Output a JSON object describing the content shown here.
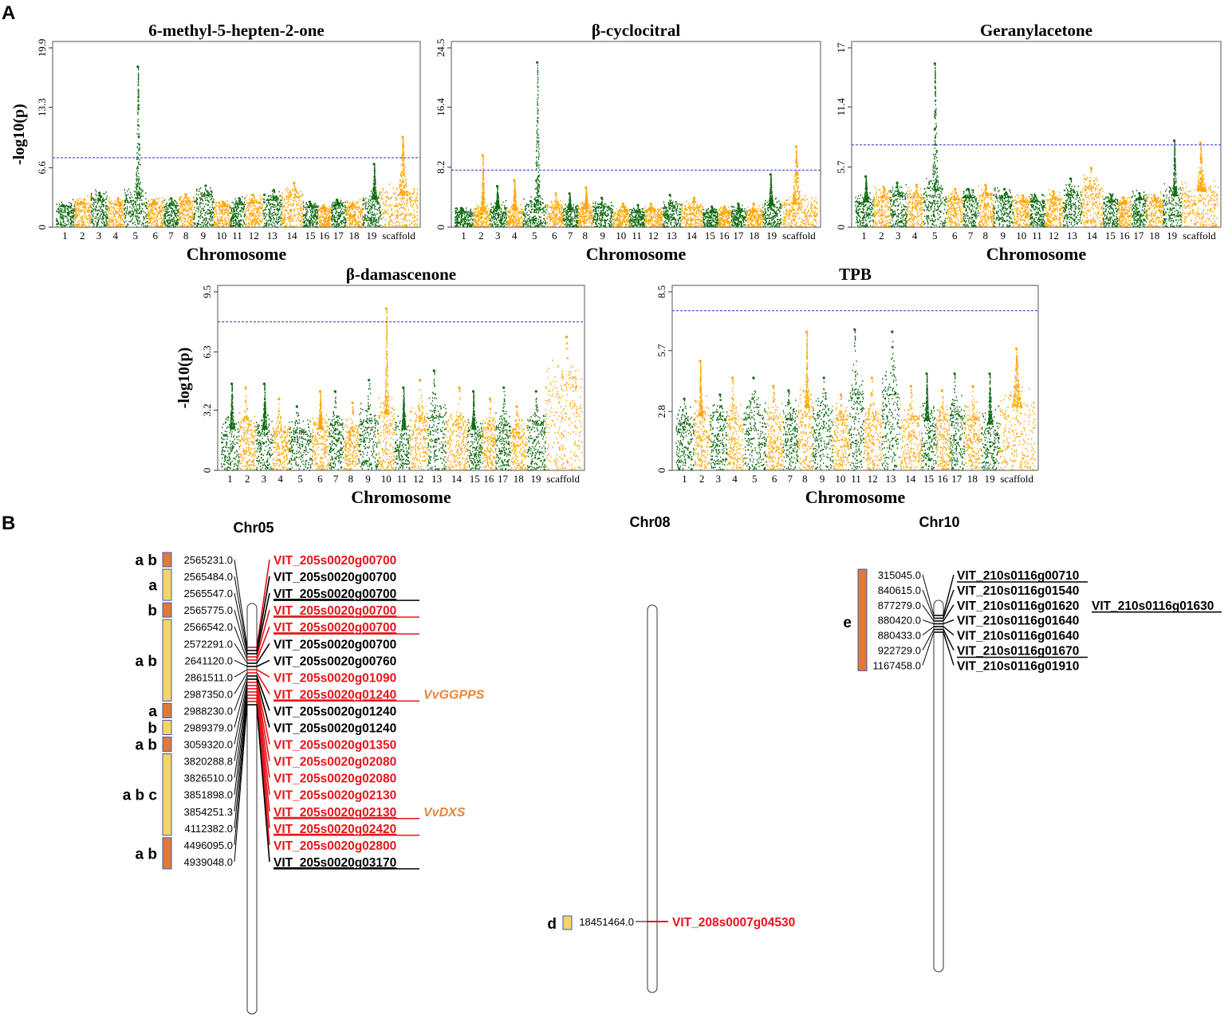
{
  "panel_labels": {
    "a": "A",
    "b": "B"
  },
  "colors": {
    "green": "#0f6a10",
    "orange": "#ffa500",
    "threshold": "#2d2dd6",
    "red": "#e8141a",
    "gene_orange": "#e8863a",
    "box_dark": "#e07a3a",
    "box_light": "#f7d36b",
    "box_border": "#3a5bb0"
  },
  "chart_data": [
    {
      "type": "scatter",
      "subtype": "manhattan",
      "title": "6-methyl-5-hepten-2-one",
      "xlabel": "Chromosome",
      "ylabel": "-log10(p)",
      "ylim": [
        0,
        19.9
      ],
      "yticks": [
        "0",
        "6.6",
        "13.3",
        "19.9"
      ],
      "threshold": 7.7,
      "x_labels": [
        "1",
        "2",
        "3",
        "4",
        "5",
        "6",
        "7",
        "8",
        "9",
        "10",
        "11",
        "12",
        "13",
        "14",
        "15",
        "16",
        "17",
        "18",
        "19",
        "scaffold"
      ],
      "base": [
        2.3,
        2.6,
        3.0,
        2.4,
        3.2,
        2.5,
        2.4,
        2.8,
        3.4,
        2.3,
        2.5,
        2.7,
        3.0,
        3.3,
        2.2,
        2.0,
        2.4,
        2.2,
        3.1,
        3.5
      ],
      "peaks": [
        2.4,
        2.8,
        3.8,
        3.2,
        17.8,
        3.0,
        3.2,
        3.6,
        4.6,
        2.8,
        3.2,
        3.6,
        4.1,
        4.9,
        2.8,
        2.4,
        3.0,
        2.6,
        7.0,
        10.0
      ]
    },
    {
      "type": "scatter",
      "subtype": "manhattan",
      "title": "β-cyclocitral",
      "xlabel": "Chromosome",
      "ylabel": "-log10(p)",
      "ylim": [
        0,
        24.5
      ],
      "yticks": [
        "0",
        "8.2",
        "16.4",
        "24.5"
      ],
      "threshold": 7.8,
      "x_labels": [
        "1",
        "2",
        "3",
        "4",
        "5",
        "6",
        "7",
        "8",
        "9",
        "10",
        "11",
        "12",
        "13",
        "14",
        "15",
        "16",
        "17",
        "18",
        "19",
        "scaffold"
      ],
      "base": [
        2.0,
        2.2,
        2.6,
        2.4,
        3.0,
        2.6,
        2.4,
        2.6,
        2.6,
        2.2,
        2.0,
        2.2,
        2.6,
        2.6,
        2.0,
        2.0,
        2.2,
        2.2,
        3.0,
        3.2
      ],
      "peaks": [
        2.6,
        9.8,
        5.6,
        6.4,
        22.5,
        4.6,
        4.6,
        5.4,
        4.0,
        3.2,
        3.0,
        3.2,
        4.4,
        4.0,
        2.8,
        2.8,
        3.2,
        3.2,
        7.2,
        11.0
      ]
    },
    {
      "type": "scatter",
      "subtype": "manhattan",
      "title": "Geranylacetone",
      "xlabel": "Chromosome",
      "ylabel": "-log10(p)",
      "ylim": [
        0,
        17
      ],
      "yticks": [
        "0",
        "5.7",
        "11.4",
        "17"
      ],
      "threshold": 7.8,
      "x_labels": [
        "1",
        "2",
        "3",
        "4",
        "5",
        "6",
        "7",
        "8",
        "9",
        "10",
        "11",
        "12",
        "13",
        "14",
        "15",
        "16",
        "17",
        "18",
        "19",
        "scaffold"
      ],
      "base": [
        2.4,
        2.8,
        3.0,
        2.8,
        3.5,
        2.6,
        2.8,
        3.0,
        2.8,
        2.4,
        2.4,
        2.6,
        3.0,
        3.6,
        2.4,
        2.2,
        2.6,
        2.4,
        3.0,
        3.4
      ],
      "peaks": [
        4.8,
        3.8,
        4.2,
        4.0,
        15.5,
        3.6,
        3.6,
        4.0,
        3.6,
        3.0,
        3.0,
        3.4,
        4.6,
        5.6,
        3.0,
        2.8,
        3.2,
        3.0,
        8.2,
        8.0
      ]
    },
    {
      "type": "scatter",
      "subtype": "manhattan",
      "title": "β-damascenone",
      "xlabel": "Chromosome",
      "ylabel": "-log10(p)",
      "ylim": [
        0,
        9.5
      ],
      "yticks": [
        "0",
        "3.2",
        "6.3",
        "9.5"
      ],
      "threshold": 7.9,
      "x_labels": [
        "1",
        "2",
        "3",
        "4",
        "5",
        "6",
        "7",
        "8",
        "9",
        "10",
        "11",
        "12",
        "13",
        "14",
        "15",
        "16",
        "17",
        "18",
        "19",
        "scaffold"
      ],
      "base": [
        2.2,
        2.4,
        2.2,
        2.0,
        2.0,
        2.2,
        2.4,
        2.0,
        2.6,
        3.0,
        2.2,
        2.6,
        2.8,
        2.4,
        2.2,
        2.2,
        2.4,
        2.0,
        2.4,
        4.4
      ],
      "peaks": [
        4.6,
        4.4,
        4.6,
        3.8,
        3.4,
        4.2,
        4.2,
        3.6,
        4.8,
        8.6,
        4.4,
        4.8,
        5.3,
        4.4,
        4.2,
        3.8,
        4.4,
        3.4,
        4.2,
        7.1
      ]
    },
    {
      "type": "scatter",
      "subtype": "manhattan",
      "title": "TPB",
      "xlabel": "Chromosome",
      "ylabel": "-log10(p)",
      "ylim": [
        0,
        8.5
      ],
      "yticks": [
        "0",
        "2.8",
        "5.7",
        "8.5"
      ],
      "threshold": 7.6,
      "x_labels": [
        "1",
        "2",
        "3",
        "4",
        "5",
        "6",
        "7",
        "8",
        "9",
        "10",
        "11",
        "12",
        "13",
        "14",
        "15",
        "16",
        "17",
        "18",
        "19",
        "scaffold"
      ],
      "base": [
        2.2,
        2.6,
        2.4,
        2.4,
        2.6,
        2.4,
        2.4,
        3.0,
        2.6,
        2.4,
        3.6,
        2.4,
        3.6,
        2.4,
        2.4,
        2.4,
        2.6,
        2.4,
        2.2,
        3.0
      ],
      "peaks": [
        3.4,
        5.2,
        3.6,
        4.4,
        4.4,
        4.0,
        3.8,
        6.6,
        4.4,
        3.6,
        6.7,
        4.4,
        6.6,
        4.0,
        4.6,
        3.8,
        4.6,
        4.0,
        4.6,
        5.8
      ]
    }
  ],
  "chromosomes": {
    "chr05": {
      "name": "Chr05",
      "markers": [
        {
          "pos": "2565231.0",
          "gene": "VIT_205s0020g00700",
          "color": "red",
          "underline": false
        },
        {
          "pos": "2565484.0",
          "gene": "VIT_205s0020g00700",
          "color": "black",
          "underline": false
        },
        {
          "pos": "2565547.0",
          "gene": "VIT_205s0020g00700",
          "color": "black",
          "underline": true
        },
        {
          "pos": "2565775.0",
          "gene": "VIT_205s0020g00700",
          "color": "red",
          "underline": true
        },
        {
          "pos": "2566542.0",
          "gene": "VIT_205s0020g00700",
          "color": "red",
          "underline": true
        },
        {
          "pos": "2572291.0",
          "gene": "VIT_205s0020g00700",
          "color": "black",
          "underline": false
        },
        {
          "pos": "2641120.0",
          "gene": "VIT_205s0020g00760",
          "color": "black",
          "underline": false
        },
        {
          "pos": "2861511.0",
          "gene": "VIT_205s0020g01090",
          "color": "red",
          "underline": false
        },
        {
          "pos": "2987350.0",
          "gene": "VIT_205s0020g01240",
          "color": "red",
          "underline": true,
          "note": "VvGGPPS"
        },
        {
          "pos": "2988230.0",
          "gene": "VIT_205s0020g01240",
          "color": "black",
          "underline": false
        },
        {
          "pos": "2989379.0",
          "gene": "VIT_205s0020g01240",
          "color": "black",
          "underline": false
        },
        {
          "pos": "3059320.0",
          "gene": "VIT_205s0020g01350",
          "color": "red",
          "underline": false
        },
        {
          "pos": "3820288.8",
          "gene": "VIT_205s0020g02080",
          "color": "red",
          "underline": false
        },
        {
          "pos": "3826510.0",
          "gene": "VIT_205s0020g02080",
          "color": "red",
          "underline": false
        },
        {
          "pos": "3851898.0",
          "gene": "VIT_205s0020g02130",
          "color": "red",
          "underline": false
        },
        {
          "pos": "3854251.3",
          "gene": "VIT_205s0020g02130",
          "color": "red",
          "underline": true,
          "note": "VvDXS"
        },
        {
          "pos": "4112382.0",
          "gene": "VIT_205s0020g02420",
          "color": "red",
          "underline": true
        },
        {
          "pos": "4496095.0",
          "gene": "VIT_205s0020g02800",
          "color": "red",
          "underline": false
        },
        {
          "pos": "4939048.0",
          "gene": "VIT_205s0020g03170",
          "color": "black",
          "underline": true
        }
      ],
      "groups": [
        {
          "label": "a b",
          "shade": "dark"
        },
        {
          "label": "a",
          "shade": "light"
        },
        {
          "label": "b",
          "shade": "dark"
        },
        {
          "label": "a b",
          "shade": "light"
        },
        {
          "label": "a",
          "shade": "dark"
        },
        {
          "label": "b",
          "shade": "light"
        },
        {
          "label": "a b",
          "shade": "dark"
        },
        {
          "label": "a b c",
          "shade": "light"
        },
        {
          "label": "a b",
          "shade": "dark"
        }
      ]
    },
    "chr08": {
      "name": "Chr08",
      "markers": [
        {
          "pos": "18451464.0",
          "gene": "VIT_208s0007g04530",
          "color": "red",
          "underline": false
        }
      ],
      "groups": [
        {
          "label": "d",
          "shade": "light"
        }
      ]
    },
    "chr10": {
      "name": "Chr10",
      "markers": [
        {
          "pos": "315045.0",
          "gene": "VIT_210s0116g00710",
          "color": "black",
          "underline": true
        },
        {
          "pos": "840615.0",
          "gene": "VIT_210s0116g01540",
          "color": "black",
          "underline": false
        },
        {
          "pos": "877279.0",
          "gene": "VIT_210s0116g01620",
          "color": "black",
          "underline": false,
          "extra": "VIT_210s0116g01630"
        },
        {
          "pos": "880420.0",
          "gene": "VIT_210s0116g01640",
          "color": "black",
          "underline": false
        },
        {
          "pos": "880433.0",
          "gene": "VIT_210s0116g01640",
          "color": "black",
          "underline": false
        },
        {
          "pos": "922729.0",
          "gene": "VIT_210s0116g01670",
          "color": "black",
          "underline": true
        },
        {
          "pos": "1167458.0",
          "gene": "VIT_210s0116g01910",
          "color": "black",
          "underline": false
        }
      ],
      "groups": [
        {
          "label": "e",
          "shade": "dark"
        }
      ]
    }
  }
}
